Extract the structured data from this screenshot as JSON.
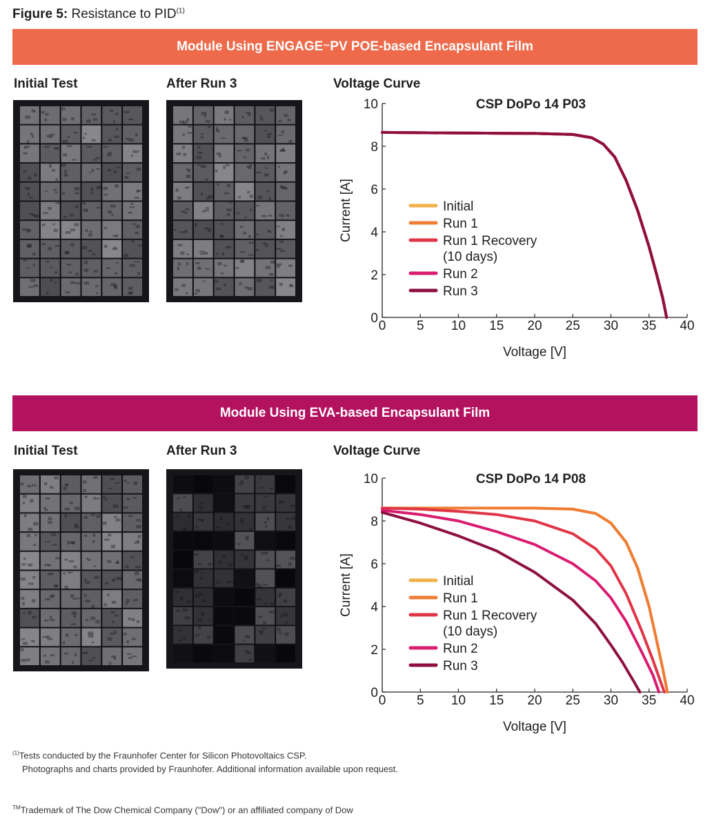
{
  "figure": {
    "label": "Figure 5:",
    "title": "Resistance to PID",
    "footnote_marker": "(1)"
  },
  "sections": [
    {
      "banner_pre": "Module Using ENGAGE",
      "banner_tm": "™",
      "banner_post": " PV POE-based Encapsulant Film",
      "banner_color": "#ee6a4a",
      "photo_labels": [
        "Initial Test",
        "After Run 3"
      ],
      "chart_heading": "Voltage Curve"
    },
    {
      "banner_pre": "Module Using EVA-based Encapsulant Film",
      "banner_tm": "",
      "banner_post": "",
      "banner_color": "#b3125f",
      "photo_labels": [
        "Initial Test",
        "After Run 3"
      ],
      "chart_heading": "Voltage Curve"
    }
  ],
  "chart_data": [
    {
      "type": "line",
      "title": "CSP DoPo 14 P03",
      "xlabel": "Voltage [V]",
      "ylabel": "Current [A]",
      "xlim": [
        0,
        40
      ],
      "ylim": [
        0,
        10
      ],
      "xticks": [
        0,
        5,
        10,
        15,
        20,
        25,
        30,
        35,
        40
      ],
      "yticks": [
        0,
        2,
        4,
        6,
        8,
        10
      ],
      "grid": false,
      "legend_position": "center-left",
      "series": [
        {
          "name": "Initial",
          "color": "#f2b048",
          "x": [
            0,
            10,
            20,
            25,
            27.5,
            29,
            30.5,
            32,
            33.5,
            35,
            36,
            36.8,
            37.3
          ],
          "y": [
            8.65,
            8.62,
            8.6,
            8.55,
            8.4,
            8.1,
            7.5,
            6.4,
            5.0,
            3.3,
            2.0,
            0.9,
            0.0
          ]
        },
        {
          "name": "Run 1",
          "color": "#ef7d35",
          "x": [
            0,
            10,
            20,
            25,
            27.5,
            29,
            30.5,
            32,
            33.5,
            35,
            36,
            36.8,
            37.3
          ],
          "y": [
            8.65,
            8.62,
            8.6,
            8.55,
            8.4,
            8.1,
            7.5,
            6.4,
            5.0,
            3.3,
            2.0,
            0.9,
            0.0
          ]
        },
        {
          "name": "Run 1 Recovery",
          "name2": "(10 days)",
          "color": "#e03546",
          "x": [
            0,
            10,
            20,
            25,
            27.5,
            29,
            30.5,
            32,
            33.5,
            35,
            36,
            36.8,
            37.3
          ],
          "y": [
            8.65,
            8.62,
            8.6,
            8.55,
            8.4,
            8.1,
            7.5,
            6.4,
            5.0,
            3.3,
            2.0,
            0.9,
            0.0
          ]
        },
        {
          "name": "Run 2",
          "color": "#d91c6f",
          "x": [
            0,
            10,
            20,
            25,
            27.5,
            29,
            30.5,
            32,
            33.5,
            35,
            36,
            36.8,
            37.3
          ],
          "y": [
            8.65,
            8.62,
            8.6,
            8.55,
            8.4,
            8.1,
            7.5,
            6.4,
            5.0,
            3.3,
            2.0,
            0.9,
            0.0
          ]
        },
        {
          "name": "Run 3",
          "color": "#8e1040",
          "x": [
            0,
            10,
            20,
            25,
            27.5,
            29,
            30.5,
            32,
            33.5,
            35,
            36,
            36.8,
            37.3
          ],
          "y": [
            8.65,
            8.62,
            8.6,
            8.55,
            8.4,
            8.1,
            7.5,
            6.4,
            5.0,
            3.3,
            2.0,
            0.9,
            0.0
          ]
        }
      ]
    },
    {
      "type": "line",
      "title": "CSP DoPo 14 P08",
      "xlabel": "Voltage [V]",
      "ylabel": "Current [A]",
      "xlim": [
        0,
        40
      ],
      "ylim": [
        0,
        10
      ],
      "xticks": [
        0,
        5,
        10,
        15,
        20,
        25,
        30,
        35,
        40
      ],
      "yticks": [
        0,
        2,
        4,
        6,
        8,
        10
      ],
      "grid": false,
      "legend_position": "center-left",
      "series": [
        {
          "name": "Initial",
          "color": "#f2b048",
          "x": [
            0,
            10,
            20,
            25,
            28,
            30,
            32,
            33.5,
            35,
            36,
            36.8,
            37.4
          ],
          "y": [
            8.6,
            8.6,
            8.6,
            8.55,
            8.35,
            7.9,
            7.0,
            5.8,
            4.0,
            2.4,
            1.1,
            0.0
          ]
        },
        {
          "name": "Run 1",
          "color": "#ef7d35",
          "x": [
            0,
            10,
            20,
            25,
            28,
            30,
            32,
            33.5,
            35,
            36,
            36.8,
            37.4
          ],
          "y": [
            8.6,
            8.6,
            8.6,
            8.55,
            8.35,
            7.9,
            7.0,
            5.8,
            4.0,
            2.4,
            1.1,
            0.0
          ]
        },
        {
          "name": "Run 1 Recovery",
          "name2": "(10 days)",
          "color": "#e03546",
          "x": [
            0,
            5,
            10,
            15,
            20,
            25,
            28,
            30,
            32,
            34,
            35.5,
            36.5,
            37.0
          ],
          "y": [
            8.6,
            8.55,
            8.45,
            8.3,
            8.0,
            7.4,
            6.7,
            5.9,
            4.6,
            2.9,
            1.5,
            0.5,
            0.0
          ]
        },
        {
          "name": "Run 2",
          "color": "#d91c6f",
          "x": [
            0,
            5,
            10,
            15,
            20,
            25,
            28,
            30,
            32,
            34,
            35.5,
            36.3
          ],
          "y": [
            8.5,
            8.3,
            8.0,
            7.5,
            6.9,
            6.0,
            5.2,
            4.4,
            3.3,
            1.9,
            0.8,
            0.0
          ]
        },
        {
          "name": "Run 3",
          "color": "#8e1040",
          "x": [
            0,
            5,
            10,
            15,
            20,
            25,
            28,
            30,
            31.5,
            33,
            33.8
          ],
          "y": [
            8.4,
            7.9,
            7.3,
            6.6,
            5.6,
            4.3,
            3.2,
            2.2,
            1.4,
            0.5,
            0.0
          ]
        }
      ]
    }
  ],
  "footnotes": {
    "note1_marker": "(1)",
    "note1_line1": "Tests conducted by the Fraunhofer Center for Silicon Photovoltaics CSP.",
    "note1_line2": "Photographs and charts provided by Fraunhofer. Additional information available upon request.",
    "note2_marker": "TM",
    "note2_text": "Trademark of The Dow Chemical Company (\"Dow\") or an affiliated company of Dow"
  }
}
